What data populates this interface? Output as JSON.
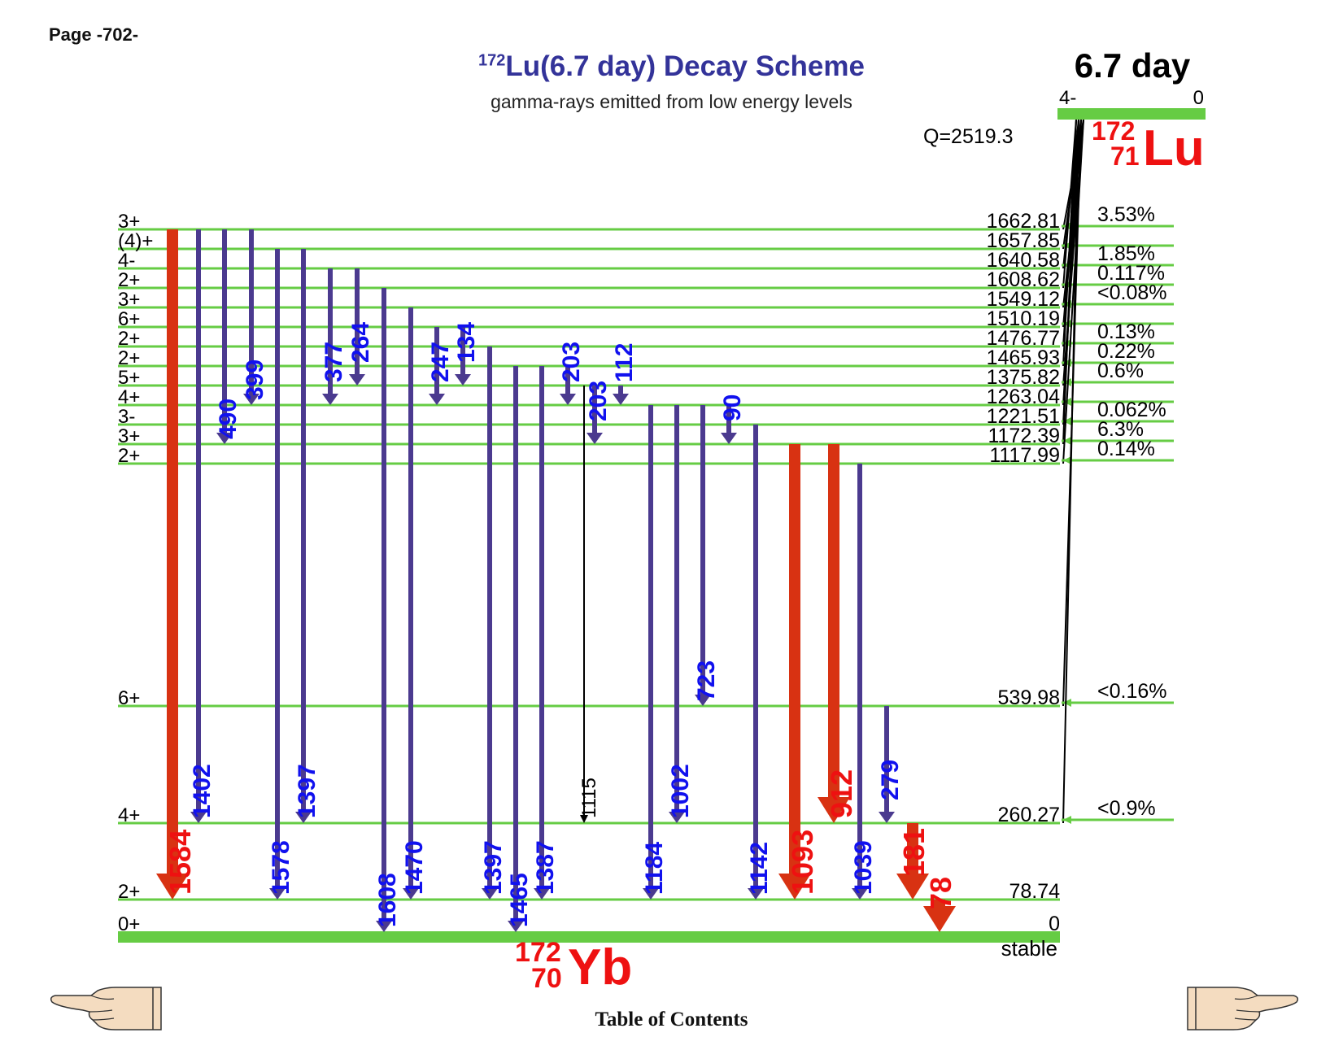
{
  "page_label": "Page -702-",
  "title": {
    "mass": "172",
    "text": "Lu(6.7 day) Decay Scheme",
    "subtitle": "gamma-rays emitted from low energy levels"
  },
  "parent": {
    "half_life": "6.7 day",
    "spin": "4-",
    "energy": "0",
    "mass": "172",
    "z": "71",
    "symbol": "Lu",
    "q_value": "Q=2519.3"
  },
  "daughter": {
    "mass": "172",
    "z": "70",
    "symbol": "Yb",
    "stability": "stable"
  },
  "colors": {
    "level": "#66cc44",
    "gamma": "#4b3a8f",
    "strong_gamma": "#d83212",
    "weak_gamma": "#000000",
    "label_blue": "#1111ee",
    "label_red": "#ee1111",
    "title": "#333399"
  },
  "levels": [
    {
      "spin": "3+",
      "energy": "1662.81",
      "feed": "3.53%"
    },
    {
      "spin": "(4)+",
      "energy": "1657.85",
      "feed": ""
    },
    {
      "spin": "4-",
      "energy": "1640.58",
      "feed": "1.85%"
    },
    {
      "spin": "2+",
      "energy": "1608.62",
      "feed": "0.117%"
    },
    {
      "spin": "3+",
      "energy": "1549.12",
      "feed": "<0.08%"
    },
    {
      "spin": "6+",
      "energy": "1510.19",
      "feed": ""
    },
    {
      "spin": "2+",
      "energy": "1476.77",
      "feed": "0.13%"
    },
    {
      "spin": "2+",
      "energy": "1465.93",
      "feed": "0.22%"
    },
    {
      "spin": "5+",
      "energy": "1375.82",
      "feed": "0.6%"
    },
    {
      "spin": "4+",
      "energy": "1263.04",
      "feed": ""
    },
    {
      "spin": "3-",
      "energy": "1221.51",
      "feed": "0.062%"
    },
    {
      "spin": "3+",
      "energy": "1172.39",
      "feed": "6.3%"
    },
    {
      "spin": "2+",
      "energy": "1117.99",
      "feed": "0.14%"
    },
    {
      "spin": "6+",
      "energy": "539.98",
      "feed": "<0.16%"
    },
    {
      "spin": "4+",
      "energy": "260.27",
      "feed": "<0.9%"
    },
    {
      "spin": "2+",
      "energy": "78.74",
      "feed": ""
    },
    {
      "spin": "0+",
      "energy": "0",
      "feed": ""
    }
  ],
  "gammas": [
    {
      "label": "1584",
      "from": "1662.81",
      "to": "78.74",
      "style": "red"
    },
    {
      "label": "1402",
      "from": "1662.81",
      "to": "260.27",
      "style": "blue"
    },
    {
      "label": "490",
      "from": "1662.81",
      "to": "1172.39",
      "style": "blue"
    },
    {
      "label": "399",
      "from": "1662.81",
      "to": "1263.04",
      "style": "blue"
    },
    {
      "label": "1578",
      "from": "1657.85",
      "to": "78.74",
      "style": "blue"
    },
    {
      "label": "1397",
      "from": "1657.85",
      "to": "260.27",
      "style": "blue"
    },
    {
      "label": "377",
      "from": "1640.58",
      "to": "1263.04",
      "style": "blue"
    },
    {
      "label": "264",
      "from": "1640.58",
      "to": "1375.82",
      "style": "blue"
    },
    {
      "label": "1608",
      "from": "1608.62",
      "to": "0",
      "style": "blue"
    },
    {
      "label": "1470",
      "from": "1549.12",
      "to": "78.74",
      "style": "blue"
    },
    {
      "label": "247",
      "from": "1510.19",
      "to": "1263.04",
      "style": "blue"
    },
    {
      "label": "134",
      "from": "1510.19",
      "to": "1375.82",
      "style": "blue"
    },
    {
      "label": "1397",
      "from": "1476.77",
      "to": "78.74",
      "style": "blue"
    },
    {
      "label": "1465",
      "from": "1465.93",
      "to": "0",
      "style": "blue"
    },
    {
      "label": "1387",
      "from": "1465.93",
      "to": "78.74",
      "style": "blue"
    },
    {
      "label": "203",
      "from": "1465.93",
      "to": "1263.04",
      "style": "blue"
    },
    {
      "label": "1115",
      "from": "1375.82",
      "to": "260.27",
      "style": "thin"
    },
    {
      "label": "203",
      "from": "1375.82",
      "to": "1172.39",
      "style": "blue"
    },
    {
      "label": "112",
      "from": "1375.82",
      "to": "1263.04",
      "style": "blue"
    },
    {
      "label": "1184",
      "from": "1263.04",
      "to": "78.74",
      "style": "blue"
    },
    {
      "label": "1002",
      "from": "1263.04",
      "to": "260.27",
      "style": "blue"
    },
    {
      "label": "723",
      "from": "1263.04",
      "to": "539.98",
      "style": "blue"
    },
    {
      "label": "90",
      "from": "1263.04",
      "to": "1172.39",
      "style": "blue"
    },
    {
      "label": "1142",
      "from": "1221.51",
      "to": "78.74",
      "style": "blue"
    },
    {
      "label": "1093",
      "from": "1172.39",
      "to": "78.74",
      "style": "red"
    },
    {
      "label": "912",
      "from": "1172.39",
      "to": "260.27",
      "style": "red"
    },
    {
      "label": "1039",
      "from": "1117.99",
      "to": "78.74",
      "style": "blue"
    },
    {
      "label": "279",
      "from": "539.98",
      "to": "260.27",
      "style": "blue"
    },
    {
      "label": "181",
      "from": "260.27",
      "to": "78.74",
      "style": "red"
    },
    {
      "label": "78",
      "from": "78.74",
      "to": "0",
      "style": "red"
    }
  ],
  "toc_label": "Table of Contents",
  "nav": {
    "prev": "pointing-hand-left-icon",
    "next": "pointing-hand-right-icon"
  }
}
